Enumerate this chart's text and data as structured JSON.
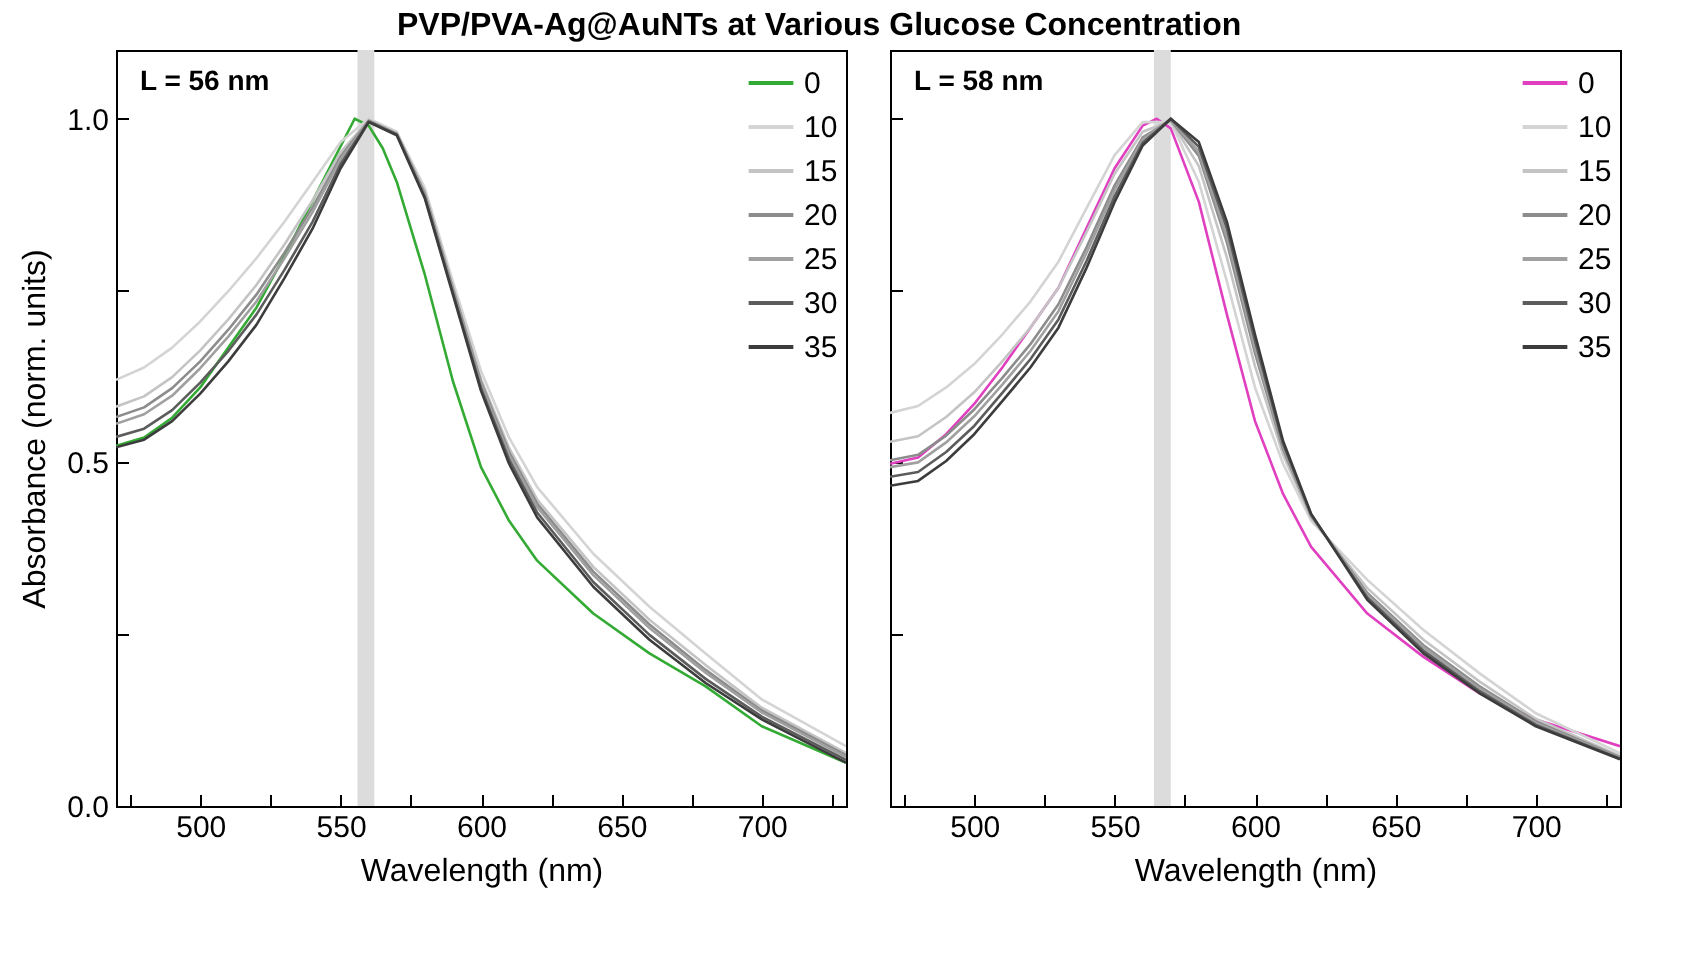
{
  "chart_data": [
    {
      "type": "line",
      "title": "PVP/PVA-Ag@AuNTs at Various Glucose Concentration",
      "xlabel": "Wavelength (nm)",
      "ylabel": "Absorbance (norm. units)",
      "annotations": [
        "L = 56 nm"
      ],
      "legend": "top right",
      "grid": false,
      "xlim": [
        470,
        730
      ],
      "ylim": [
        0,
        1.1
      ],
      "xticks": [
        {
          "value": 475,
          "label": null
        },
        500,
        {
          "value": 525,
          "label": null
        },
        550,
        {
          "value": 575,
          "label": null
        },
        600,
        {
          "value": 625,
          "label": null
        },
        650,
        {
          "value": 675,
          "label": null
        },
        700,
        {
          "value": 725,
          "label": null
        }
      ],
      "yticks": [
        {
          "value": 0,
          "label": "0.0"
        },
        {
          "value": 0.25,
          "label": null
        },
        {
          "value": 0.5,
          "label": "0.5"
        },
        {
          "value": 0.75,
          "label": null
        },
        {
          "value": 1,
          "label": "1.0"
        }
      ],
      "bands": [
        {
          "axis": "x",
          "from": 556,
          "to": 562,
          "color": "#dcdcdc"
        }
      ],
      "x": [
        470,
        480,
        490,
        500,
        510,
        520,
        530,
        540,
        550,
        560,
        570,
        580,
        590,
        600,
        610,
        620,
        640,
        660,
        680,
        700,
        730
      ],
      "series": [
        {
          "name": "0",
          "color": "#33aa33",
          "x": [
            470,
            480,
            490,
            500,
            510,
            520,
            530,
            540,
            550,
            555,
            560,
            565,
            570,
            580,
            590,
            600,
            610,
            620,
            640,
            660,
            680,
            700,
            730
          ],
          "values": [
            0.524,
            0.536,
            0.565,
            0.609,
            0.667,
            0.725,
            0.8,
            0.88,
            0.96,
            1.0,
            0.99,
            0.957,
            0.908,
            0.773,
            0.618,
            0.493,
            0.415,
            0.357,
            0.28,
            0.222,
            0.174,
            0.116,
            0.063
          ]
        },
        {
          "name": "10",
          "color": "#d4d4d4",
          "values": [
            0.62,
            0.638,
            0.667,
            0.705,
            0.749,
            0.797,
            0.85,
            0.908,
            0.966,
            1.0,
            0.981,
            0.899,
            0.763,
            0.633,
            0.536,
            0.464,
            0.367,
            0.29,
            0.222,
            0.155,
            0.087
          ]
        },
        {
          "name": "15",
          "color": "#c4c4c4",
          "values": [
            0.581,
            0.596,
            0.624,
            0.663,
            0.708,
            0.758,
            0.817,
            0.881,
            0.951,
            0.998,
            0.979,
            0.893,
            0.755,
            0.621,
            0.521,
            0.446,
            0.348,
            0.271,
            0.205,
            0.143,
            0.077
          ]
        },
        {
          "name": "20",
          "color": "#8c8c8c",
          "values": [
            0.566,
            0.58,
            0.608,
            0.647,
            0.693,
            0.744,
            0.805,
            0.871,
            0.945,
            0.997,
            0.978,
            0.891,
            0.753,
            0.617,
            0.515,
            0.44,
            0.341,
            0.264,
            0.198,
            0.139,
            0.074
          ]
        },
        {
          "name": "25",
          "color": "#a0a0a0",
          "values": [
            0.556,
            0.57,
            0.597,
            0.637,
            0.683,
            0.734,
            0.797,
            0.864,
            0.941,
            0.997,
            0.978,
            0.889,
            0.751,
            0.614,
            0.511,
            0.435,
            0.336,
            0.259,
            0.194,
            0.136,
            0.071
          ]
        },
        {
          "name": "30",
          "color": "#5c5c5c",
          "values": [
            0.537,
            0.549,
            0.576,
            0.616,
            0.662,
            0.715,
            0.78,
            0.85,
            0.934,
            0.996,
            0.977,
            0.886,
            0.747,
            0.608,
            0.504,
            0.427,
            0.326,
            0.249,
            0.185,
            0.13,
            0.067
          ]
        },
        {
          "name": "35",
          "color": "#3c3c3c",
          "values": [
            0.522,
            0.533,
            0.56,
            0.6,
            0.647,
            0.7,
            0.768,
            0.84,
            0.928,
            0.995,
            0.976,
            0.884,
            0.744,
            0.604,
            0.498,
            0.42,
            0.319,
            0.242,
            0.179,
            0.126,
            0.063
          ]
        }
      ]
    },
    {
      "type": "line",
      "xlabel": "Wavelength (nm)",
      "annotations": [
        "L = 58 nm"
      ],
      "legend": "top right",
      "grid": false,
      "tick_labels": "x",
      "xlim": [
        470,
        730
      ],
      "ylim": [
        0,
        1.1
      ],
      "xticks": [
        {
          "value": 475,
          "label": null
        },
        500,
        {
          "value": 525,
          "label": null
        },
        550,
        {
          "value": 575,
          "label": null
        },
        600,
        {
          "value": 625,
          "label": null
        },
        650,
        {
          "value": 675,
          "label": null
        },
        700,
        {
          "value": 725,
          "label": null
        }
      ],
      "bands": [
        {
          "axis": "x",
          "from": 564,
          "to": 570,
          "color": "#dcdcdc"
        }
      ],
      "yticks": [
        {
          "value": 0,
          "label": null
        },
        {
          "value": 0.25,
          "label": null
        },
        {
          "value": 0.5,
          "label": null
        },
        {
          "value": 0.75,
          "label": null
        },
        {
          "value": 1,
          "label": null
        }
      ],
      "x": [
        470,
        480,
        490,
        500,
        510,
        520,
        530,
        540,
        550,
        560,
        570,
        580,
        590,
        600,
        610,
        620,
        640,
        660,
        680,
        700,
        730
      ],
      "series": [
        {
          "name": "0",
          "color": "#e040c0",
          "x": [
            470,
            480,
            490,
            500,
            510,
            520,
            530,
            540,
            550,
            560,
            565,
            570,
            580,
            590,
            600,
            610,
            620,
            640,
            660,
            680,
            700,
            730
          ],
          "values": [
            0.498,
            0.507,
            0.541,
            0.585,
            0.638,
            0.696,
            0.754,
            0.841,
            0.928,
            0.99,
            1.0,
            0.986,
            0.879,
            0.715,
            0.56,
            0.454,
            0.377,
            0.28,
            0.217,
            0.164,
            0.126,
            0.087
          ]
        },
        {
          "name": "10",
          "color": "#d4d4d4",
          "values": [
            0.572,
            0.582,
            0.609,
            0.643,
            0.686,
            0.734,
            0.792,
            0.87,
            0.947,
            0.995,
            0.995,
            0.908,
            0.763,
            0.609,
            0.498,
            0.415,
            0.329,
            0.256,
            0.193,
            0.135,
            0.077
          ]
        },
        {
          "name": "15",
          "color": "#c4c4c4",
          "values": [
            0.53,
            0.538,
            0.566,
            0.602,
            0.647,
            0.696,
            0.754,
            0.835,
            0.92,
            0.981,
            0.997,
            0.931,
            0.798,
            0.64,
            0.511,
            0.419,
            0.317,
            0.242,
            0.181,
            0.127,
            0.073
          ]
        },
        {
          "name": "20",
          "color": "#8c8c8c",
          "values": [
            0.503,
            0.511,
            0.539,
            0.577,
            0.623,
            0.672,
            0.73,
            0.813,
            0.903,
            0.973,
            0.998,
            0.946,
            0.82,
            0.659,
            0.519,
            0.422,
            0.31,
            0.234,
            0.174,
            0.123,
            0.071
          ]
        },
        {
          "name": "25",
          "color": "#a0a0a0",
          "values": [
            0.493,
            0.5,
            0.529,
            0.567,
            0.613,
            0.662,
            0.72,
            0.805,
            0.896,
            0.97,
            0.999,
            0.952,
            0.828,
            0.667,
            0.523,
            0.423,
            0.307,
            0.231,
            0.171,
            0.121,
            0.07
          ]
        },
        {
          "name": "30",
          "color": "#5c5c5c",
          "values": [
            0.479,
            0.486,
            0.515,
            0.553,
            0.601,
            0.65,
            0.708,
            0.793,
            0.887,
            0.965,
            1.0,
            0.959,
            0.84,
            0.677,
            0.527,
            0.424,
            0.303,
            0.226,
            0.167,
            0.118,
            0.069
          ]
        },
        {
          "name": "35",
          "color": "#3c3c3c",
          "values": [
            0.466,
            0.473,
            0.502,
            0.541,
            0.589,
            0.638,
            0.696,
            0.783,
            0.879,
            0.961,
            1.0,
            0.966,
            0.85,
            0.686,
            0.531,
            0.425,
            0.3,
            0.222,
            0.164,
            0.116,
            0.068
          ]
        }
      ]
    }
  ]
}
